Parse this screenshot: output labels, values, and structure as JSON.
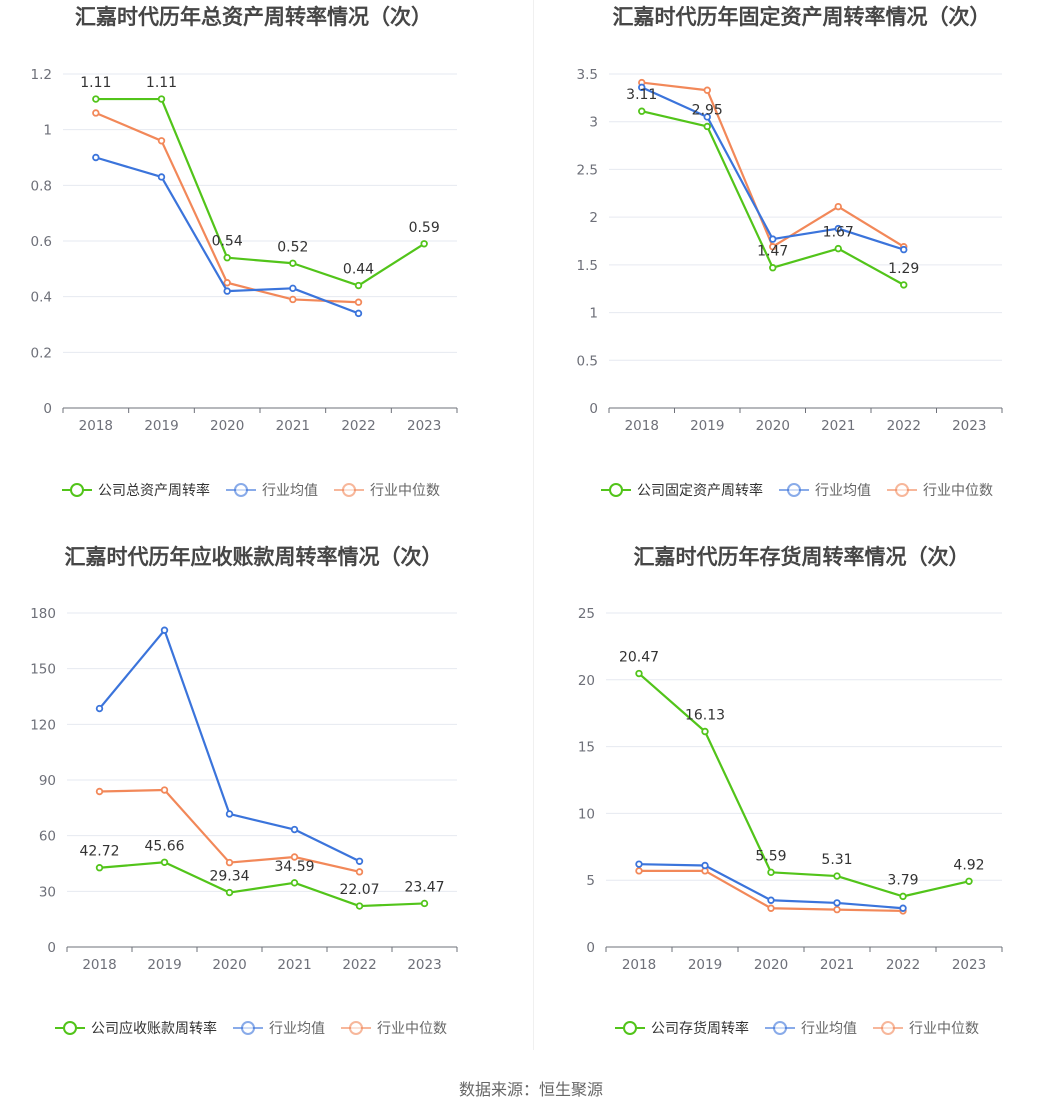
{
  "source_text": "数据来源：恒生聚源",
  "chart_data": [
    {
      "type": "line",
      "title": "汇嘉时代历年总资产周转率情况（次）",
      "categories": [
        "2018",
        "2019",
        "2020",
        "2021",
        "2022",
        "2023"
      ],
      "ylim": [
        0,
        1.2
      ],
      "yticks": [
        "0",
        "0.2",
        "0.4",
        "0.6",
        "0.8",
        "1",
        "1.2"
      ],
      "grid": true,
      "legend_position": "bottom",
      "series": [
        {
          "name": "公司总资产周转率",
          "color": "#52c41a",
          "values": [
            1.11,
            1.11,
            0.54,
            0.52,
            0.44,
            0.59
          ],
          "labels": [
            "1.11",
            "1.11",
            "0.54",
            "0.52",
            "0.44",
            "0.59"
          ]
        },
        {
          "name": "行业均值",
          "color": "#3b74db",
          "values": [
            0.9,
            0.83,
            0.42,
            0.43,
            0.34,
            null
          ]
        },
        {
          "name": "行业中位数",
          "color": "#f28859",
          "values": [
            1.06,
            0.96,
            0.45,
            0.39,
            0.38,
            null
          ]
        }
      ]
    },
    {
      "type": "line",
      "title": "汇嘉时代历年固定资产周转率情况（次）",
      "categories": [
        "2018",
        "2019",
        "2020",
        "2021",
        "2022",
        "2023"
      ],
      "ylim": [
        0,
        3.5
      ],
      "yticks": [
        "0",
        "0.5",
        "1",
        "1.5",
        "2",
        "2.5",
        "3",
        "3.5"
      ],
      "grid": true,
      "legend_position": "bottom",
      "series": [
        {
          "name": "公司固定资产周转率",
          "color": "#52c41a",
          "values": [
            3.11,
            2.95,
            1.47,
            1.67,
            1.29,
            null
          ],
          "labels": [
            "3.11",
            "2.95",
            "1.47",
            "1.67",
            "1.29",
            ""
          ]
        },
        {
          "name": "行业均值",
          "color": "#3b74db",
          "values": [
            3.36,
            3.05,
            1.77,
            1.88,
            1.66,
            null
          ]
        },
        {
          "name": "行业中位数",
          "color": "#f28859",
          "values": [
            3.41,
            3.33,
            1.69,
            2.11,
            1.69,
            null
          ]
        }
      ]
    },
    {
      "type": "line",
      "title": "汇嘉时代历年应收账款周转率情况（次）",
      "categories": [
        "2018",
        "2019",
        "2020",
        "2021",
        "2022",
        "2023"
      ],
      "ylim": [
        0,
        180
      ],
      "yticks": [
        "0",
        "30",
        "60",
        "90",
        "120",
        "150",
        "180"
      ],
      "grid": true,
      "legend_position": "bottom",
      "series": [
        {
          "name": "公司应收账款周转率",
          "color": "#52c41a",
          "values": [
            42.72,
            45.66,
            29.34,
            34.59,
            22.07,
            23.47
          ],
          "labels": [
            "42.72",
            "45.66",
            "29.34",
            "34.59",
            "22.07",
            "23.47"
          ]
        },
        {
          "name": "行业均值",
          "color": "#3b74db",
          "values": [
            128.5,
            170.7,
            71.7,
            63.3,
            46.2,
            null
          ]
        },
        {
          "name": "行业中位数",
          "color": "#f28859",
          "values": [
            83.8,
            84.6,
            45.5,
            48.5,
            40.5,
            null
          ]
        }
      ]
    },
    {
      "type": "line",
      "title": "汇嘉时代历年存货周转率情况（次）",
      "categories": [
        "2018",
        "2019",
        "2020",
        "2021",
        "2022",
        "2023"
      ],
      "ylim": [
        0,
        25
      ],
      "yticks": [
        "0",
        "5",
        "10",
        "15",
        "20",
        "25"
      ],
      "grid": true,
      "legend_position": "bottom",
      "series": [
        {
          "name": "公司存货周转率",
          "color": "#52c41a",
          "values": [
            20.47,
            16.13,
            5.59,
            5.31,
            3.79,
            4.92
          ],
          "labels": [
            "20.47",
            "16.13",
            "5.59",
            "5.31",
            "3.79",
            "4.92"
          ]
        },
        {
          "name": "行业均值",
          "color": "#3b74db",
          "values": [
            6.2,
            6.1,
            3.5,
            3.3,
            2.9,
            null
          ]
        },
        {
          "name": "行业中位数",
          "color": "#f28859",
          "values": [
            5.7,
            5.7,
            2.9,
            2.8,
            2.7,
            null
          ]
        }
      ]
    }
  ]
}
